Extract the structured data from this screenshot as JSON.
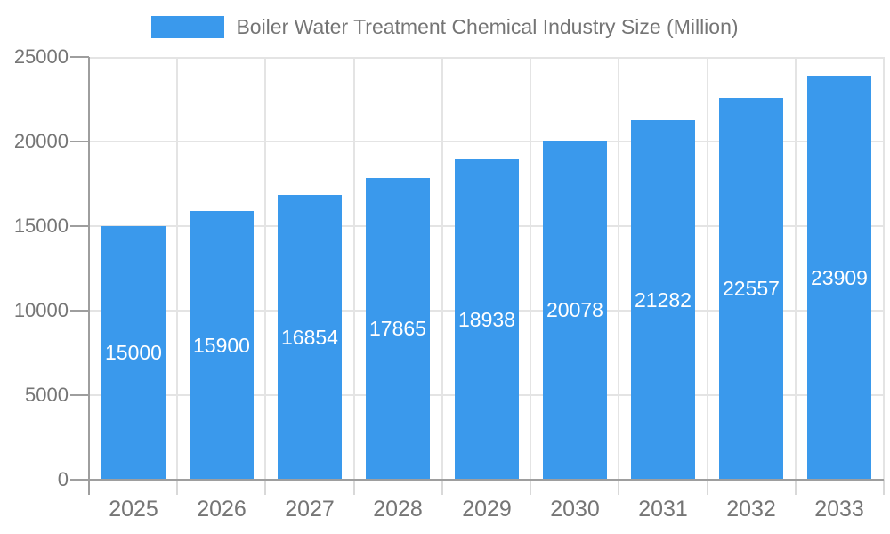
{
  "legend": {
    "label": "Boiler Water Treatment Chemical Industry Size (Million)"
  },
  "chart_data": {
    "type": "bar",
    "title": "Boiler Water Treatment Chemical Industry Size (Million)",
    "legend_position": "top",
    "categories": [
      "2025",
      "2026",
      "2027",
      "2028",
      "2029",
      "2030",
      "2031",
      "2032",
      "2033"
    ],
    "series": [
      {
        "name": "Boiler Water Treatment Chemical Industry Size (Million)",
        "values": [
          15000,
          15900,
          16854,
          17865,
          18938,
          20078,
          21282,
          22557,
          23909
        ]
      }
    ],
    "xlabel": "",
    "ylabel": "",
    "ylim": [
      0,
      25000
    ],
    "yticks": [
      0,
      5000,
      10000,
      15000,
      20000,
      25000
    ],
    "grid": true,
    "value_labels": {
      "position": "inside-center",
      "color": "#FFFFFF"
    }
  },
  "colors": {
    "bar": "#3A99EC",
    "axis": "#9E9E9E",
    "grid": "#E4E4E4",
    "tick_minor": "#D9D9D9",
    "text": "#757575",
    "value_label": "#FFFFFF",
    "background": "#FFFFFF"
  }
}
